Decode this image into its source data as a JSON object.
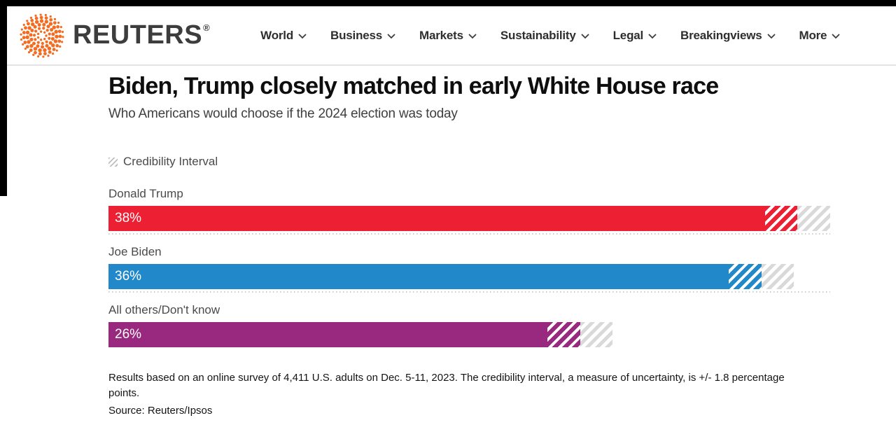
{
  "header": {
    "brand": "REUTERS",
    "registered_mark": "®",
    "nav_items": [
      {
        "label": "World"
      },
      {
        "label": "Business"
      },
      {
        "label": "Markets"
      },
      {
        "label": "Sustainability"
      },
      {
        "label": "Legal"
      },
      {
        "label": "Breakingviews"
      },
      {
        "label": "More"
      }
    ]
  },
  "chart_data": {
    "type": "bar",
    "orientation": "horizontal",
    "title": "Biden, Trump closely matched in early White House race",
    "subtitle": "Who Americans would choose if the 2024 election was today",
    "legend_label": "Credibility Interval",
    "legend_position": "top-left",
    "categories": [
      "Donald Trump",
      "Joe Biden",
      "All others/Don't know"
    ],
    "values": [
      38,
      36,
      26
    ],
    "value_labels": [
      "38%",
      "36%",
      "26%"
    ],
    "bar_colors": [
      "#ed1f33",
      "#2189c9",
      "#99297f"
    ],
    "credibility_interval_pct": 1.8,
    "xlim": [
      0,
      39.8
    ],
    "grid": "dotted-row-separators",
    "note": "Results based on an online survey of 4,411 U.S. adults on Dec. 5-11, 2023. The credibility interval, a measure of uncertainty, is +/- 1.8 percentage points.",
    "source": "Source: Reuters/Ipsos"
  },
  "colors": {
    "logo_orange": "#f36c21",
    "hatch_gray": "#d9d9d9"
  }
}
